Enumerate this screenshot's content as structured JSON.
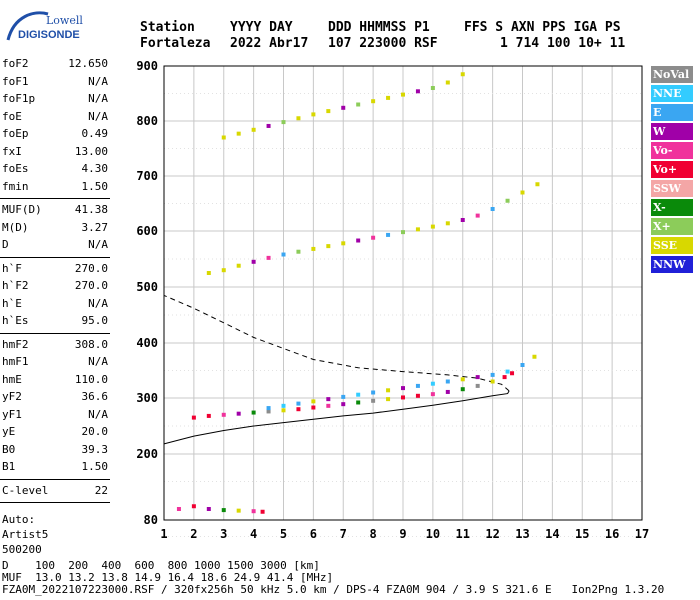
{
  "logo": {
    "brand": "Lowell",
    "product": "DIGISONDE"
  },
  "header": {
    "labels": [
      "Station",
      "YYYY DAY",
      "DDD HHMMSS P1",
      "FFS S AXN PPS IGA PS"
    ],
    "values": [
      "Fortaleza",
      "2022 Abr17",
      "107 223000 RSF",
      "1 714 100 10+ 11"
    ]
  },
  "params": {
    "group1": [
      {
        "name": "foF2",
        "value": "12.650"
      },
      {
        "name": "foF1",
        "value": "N/A"
      },
      {
        "name": "foF1p",
        "value": "N/A"
      },
      {
        "name": "foE",
        "value": "N/A"
      },
      {
        "name": "foEp",
        "value": "0.49"
      },
      {
        "name": "fxI",
        "value": "13.00"
      },
      {
        "name": "foEs",
        "value": "4.30"
      },
      {
        "name": "fmin",
        "value": "1.50"
      }
    ],
    "group2": [
      {
        "name": "MUF(D)",
        "value": "41.38"
      },
      {
        "name": "M(D)",
        "value": "3.27"
      },
      {
        "name": "D",
        "value": "N/A"
      }
    ],
    "group3": [
      {
        "name": "h`F",
        "value": "270.0"
      },
      {
        "name": "h`F2",
        "value": "270.0"
      },
      {
        "name": "h`E",
        "value": "N/A"
      },
      {
        "name": "h`Es",
        "value": "95.0"
      }
    ],
    "group4": [
      {
        "name": "hmF2",
        "value": "308.0"
      },
      {
        "name": "hmF1",
        "value": "N/A"
      },
      {
        "name": "hmE",
        "value": "110.0"
      },
      {
        "name": "yF2",
        "value": "36.6"
      },
      {
        "name": "yF1",
        "value": "N/A"
      },
      {
        "name": "yE",
        "value": "20.0"
      },
      {
        "name": "B0",
        "value": "39.3"
      },
      {
        "name": "B1",
        "value": "1.50"
      }
    ],
    "group5": [
      {
        "name": "C-level",
        "value": "22"
      }
    ],
    "auto": [
      "Auto:",
      "Artist5",
      "500200"
    ]
  },
  "legend": [
    {
      "label": "NoVal",
      "color": "#8c8c8c"
    },
    {
      "label": "NNE",
      "color": "#33ccff"
    },
    {
      "label": "E",
      "color": "#3aa6f2"
    },
    {
      "label": "W",
      "color": "#a000a8"
    },
    {
      "label": "Vo-",
      "color": "#f0329c"
    },
    {
      "label": "Vo+",
      "color": "#f00032"
    },
    {
      "label": "SSW",
      "color": "#f4a6a6"
    },
    {
      "label": "X-",
      "color": "#0a8a0a"
    },
    {
      "label": "X+",
      "color": "#8ccc5a"
    },
    {
      "label": "SSE",
      "color": "#d8d800"
    },
    {
      "label": "NNW",
      "color": "#2020d8"
    }
  ],
  "footer": {
    "line1": "D    100  200  400  600  800 1000 1500 3000 [km]",
    "line2": "MUF  13.0 13.2 13.8 14.9 16.4 18.6 24.9 41.4 [MHz]",
    "line3": "FZA0M_2022107223000.RSF / 320fx256h 50 kHz 5.0 km / DPS-4 FZA0M 904 / 3.9 S 321.6 E   Ion2Png 1.3.20"
  },
  "chart_data": {
    "type": "scatter",
    "xlabel": "",
    "ylabel": "",
    "xlim": [
      1,
      17
    ],
    "ylim": [
      80,
      900
    ],
    "x_ticks": [
      1,
      2,
      3,
      4,
      5,
      6,
      7,
      8,
      9,
      10,
      11,
      12,
      13,
      14,
      15,
      16,
      17
    ],
    "y_ticks": [
      80,
      200,
      300,
      400,
      500,
      600,
      700,
      800,
      900
    ],
    "grid": true,
    "series": [
      {
        "mode": "F2-O",
        "points": [
          [
            2.0,
            265
          ],
          [
            2.5,
            268
          ],
          [
            3.0,
            270
          ],
          [
            3.5,
            272
          ],
          [
            4.0,
            274
          ],
          [
            4.5,
            276
          ],
          [
            5.0,
            278
          ],
          [
            5.5,
            280
          ],
          [
            6.0,
            283
          ],
          [
            6.5,
            286
          ],
          [
            7.0,
            289
          ],
          [
            7.5,
            292
          ],
          [
            8.0,
            295
          ],
          [
            8.5,
            298
          ],
          [
            9.0,
            301
          ],
          [
            9.5,
            304
          ],
          [
            10.0,
            307
          ],
          [
            10.5,
            311
          ],
          [
            11.0,
            316
          ],
          [
            11.5,
            322
          ],
          [
            12.0,
            330
          ],
          [
            12.4,
            338
          ],
          [
            12.65,
            345
          ]
        ]
      },
      {
        "mode": "F2-X",
        "points": [
          [
            4.5,
            282
          ],
          [
            5.0,
            286
          ],
          [
            5.5,
            290
          ],
          [
            6.0,
            294
          ],
          [
            6.5,
            298
          ],
          [
            7.0,
            302
          ],
          [
            7.5,
            306
          ],
          [
            8.0,
            310
          ],
          [
            8.5,
            314
          ],
          [
            9.0,
            318
          ],
          [
            9.5,
            322
          ],
          [
            10.0,
            326
          ],
          [
            10.5,
            330
          ],
          [
            11.0,
            334
          ],
          [
            11.5,
            338
          ],
          [
            12.0,
            342
          ],
          [
            12.5,
            348
          ],
          [
            13.0,
            360
          ],
          [
            13.4,
            375
          ]
        ]
      },
      {
        "mode": "F2-O-2hop",
        "points": [
          [
            2.5,
            525
          ],
          [
            3.0,
            530
          ],
          [
            3.5,
            538
          ],
          [
            4.0,
            545
          ],
          [
            4.5,
            552
          ],
          [
            5.0,
            558
          ],
          [
            5.5,
            563
          ],
          [
            6.0,
            568
          ],
          [
            6.5,
            573
          ],
          [
            7.0,
            578
          ],
          [
            7.5,
            583
          ],
          [
            8.0,
            588
          ],
          [
            8.5,
            593
          ],
          [
            9.0,
            598
          ],
          [
            9.5,
            603
          ],
          [
            10.0,
            608
          ],
          [
            10.5,
            614
          ],
          [
            11.0,
            620
          ],
          [
            11.5,
            628
          ],
          [
            12.0,
            640
          ],
          [
            12.5,
            655
          ],
          [
            13.0,
            670
          ],
          [
            13.5,
            685
          ]
        ]
      },
      {
        "mode": "F2-3hop",
        "points": [
          [
            3.0,
            770
          ],
          [
            3.5,
            777
          ],
          [
            4.0,
            784
          ],
          [
            4.5,
            791
          ],
          [
            5.0,
            798
          ],
          [
            5.5,
            805
          ],
          [
            6.0,
            812
          ],
          [
            6.5,
            818
          ],
          [
            7.0,
            824
          ],
          [
            7.5,
            830
          ],
          [
            8.0,
            836
          ],
          [
            8.5,
            842
          ],
          [
            9.0,
            848
          ],
          [
            9.5,
            854
          ],
          [
            10.0,
            860
          ],
          [
            10.5,
            870
          ],
          [
            11.0,
            885
          ]
        ]
      },
      {
        "mode": "Es",
        "points": [
          [
            1.5,
            100
          ],
          [
            2.0,
            105
          ],
          [
            2.5,
            100
          ],
          [
            3.0,
            98
          ],
          [
            3.5,
            97
          ],
          [
            4.0,
            96
          ],
          [
            4.3,
            95
          ]
        ]
      }
    ],
    "profile_solid": [
      [
        1.0,
        218
      ],
      [
        1.5,
        225
      ],
      [
        2.0,
        232
      ],
      [
        3.0,
        242
      ],
      [
        4.0,
        250
      ],
      [
        5.0,
        256
      ],
      [
        6.0,
        262
      ],
      [
        7.0,
        268
      ],
      [
        8.0,
        273
      ],
      [
        9.0,
        280
      ],
      [
        10.0,
        287
      ],
      [
        11.0,
        295
      ],
      [
        12.0,
        304
      ],
      [
        12.5,
        308
      ],
      [
        12.55,
        313
      ]
    ],
    "profile_dashed": [
      [
        12.55,
        313
      ],
      [
        12.3,
        325
      ],
      [
        11.5,
        336
      ],
      [
        10.5,
        342
      ],
      [
        9.0,
        348
      ],
      [
        7.5,
        355
      ],
      [
        6.0,
        370
      ],
      [
        5.0,
        390
      ],
      [
        4.0,
        410
      ],
      [
        3.0,
        436
      ],
      [
        2.0,
        462
      ],
      [
        1.0,
        485
      ]
    ]
  }
}
